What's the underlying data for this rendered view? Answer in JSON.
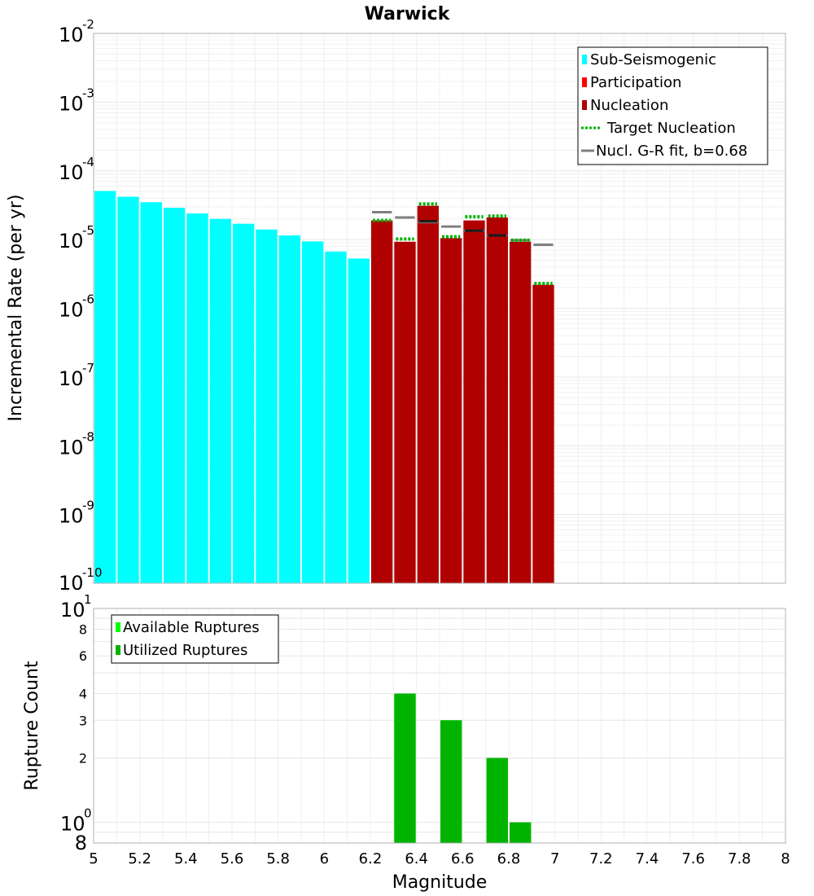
{
  "chart_data": [
    {
      "type": "bar",
      "title": "Warwick",
      "xlabel": "Magnitude",
      "ylabel": "Incremental Rate (per yr)",
      "yscale": "log",
      "xlim": [
        5,
        8
      ],
      "ylim": [
        1e-10,
        0.01
      ],
      "grid": true,
      "legend_position": "top-right",
      "y_tick_labels": [
        {
          "base": "10",
          "exp": "-10",
          "value": 1e-10
        },
        {
          "base": "10",
          "exp": "-9",
          "value": 1e-09
        },
        {
          "base": "10",
          "exp": "-8",
          "value": 1e-08
        },
        {
          "base": "10",
          "exp": "-7",
          "value": 1e-07
        },
        {
          "base": "10",
          "exp": "-6",
          "value": 1e-06
        },
        {
          "base": "10",
          "exp": "-5",
          "value": 1e-05
        },
        {
          "base": "10",
          "exp": "-4",
          "value": 0.0001
        },
        {
          "base": "10",
          "exp": "-3",
          "value": 0.001
        },
        {
          "base": "10",
          "exp": "-2",
          "value": 0.01
        }
      ],
      "legend": [
        {
          "label": "Sub-Seismogenic",
          "color": "#00ffff",
          "kind": "box"
        },
        {
          "label": "Participation",
          "color": "#ff0000",
          "kind": "box"
        },
        {
          "label": "Nucleation",
          "color": "#b00000",
          "kind": "box"
        },
        {
          "label": "Target Nucleation",
          "color": "#00b400",
          "kind": "dotted"
        },
        {
          "label": "Nucl. G-R fit, b=0.68",
          "color": "#808080",
          "kind": "line"
        }
      ],
      "series": [
        {
          "name": "Sub-Seismogenic",
          "color": "#00ffff",
          "x": [
            5.05,
            5.15,
            5.25,
            5.35,
            5.45,
            5.55,
            5.65,
            5.75,
            5.85,
            5.95,
            6.05,
            6.15
          ],
          "values": [
            5.1e-05,
            4.2e-05,
            3.5e-05,
            2.9e-05,
            2.4e-05,
            2e-05,
            1.7e-05,
            1.4e-05,
            1.15e-05,
            9.4e-06,
            6.7e-06,
            5.3e-06
          ]
        },
        {
          "name": "Nucleation",
          "color": "#b00000",
          "x": [
            6.25,
            6.35,
            6.45,
            6.55,
            6.65,
            6.75,
            6.85,
            6.95
          ],
          "values": [
            1.9e-05,
            9.3e-06,
            3.1e-05,
            1.05e-05,
            1.9e-05,
            2.1e-05,
            9.3e-06,
            2.2e-06
          ]
        },
        {
          "name": "Participation",
          "color": "#ff0000",
          "x": [
            6.25,
            6.35,
            6.45,
            6.55,
            6.65,
            6.75,
            6.85,
            6.95
          ],
          "values": [
            1.9e-05,
            9.3e-06,
            3.1e-05,
            1.05e-05,
            1.9e-05,
            2.1e-05,
            9.3e-06,
            2.2e-06
          ]
        },
        {
          "name": "Target Nucleation",
          "color": "#00b400",
          "x": [
            6.25,
            6.35,
            6.45,
            6.55,
            6.65,
            6.75,
            6.85,
            6.95
          ],
          "values": [
            1.9e-05,
            1.02e-05,
            3.3e-05,
            1.1e-05,
            2.15e-05,
            2.2e-05,
            9.8e-06,
            2.3e-06
          ]
        },
        {
          "name": "Nucl. G-R fit, b=0.68",
          "color": "#808080",
          "x": [
            6.25,
            6.35,
            6.45,
            6.55,
            6.65,
            6.75,
            6.85,
            6.95
          ],
          "values": [
            2.5e-05,
            2.1e-05,
            1.8e-05,
            1.55e-05,
            1.35e-05,
            1.15e-05,
            9.8e-06,
            8.4e-06
          ]
        },
        {
          "name": "Nucleation (black marks)",
          "color": "#1a1a1a",
          "x": [
            6.45,
            6.65,
            6.75
          ],
          "values": [
            1.85e-05,
            1.35e-05,
            1.15e-05
          ]
        }
      ]
    },
    {
      "type": "bar",
      "xlabel": "Magnitude",
      "ylabel": "Rupture Count",
      "yscale": "log",
      "xlim": [
        5,
        8
      ],
      "ylim": [
        0.8,
        10
      ],
      "grid": true,
      "legend_position": "top-left",
      "x_ticks": [
        "5",
        "5.2",
        "5.4",
        "5.6",
        "5.8",
        "6",
        "6.2",
        "6.4",
        "6.6",
        "6.8",
        "7",
        "7.2",
        "7.4",
        "7.6",
        "7.8",
        "8"
      ],
      "y_minor_ticks": [
        {
          "label": "8",
          "value": 0.8
        },
        {
          "label": "2",
          "value": 2
        },
        {
          "label": "3",
          "value": 3
        },
        {
          "label": "4",
          "value": 4
        },
        {
          "label": "6",
          "value": 6
        },
        {
          "label": "8",
          "value": 8
        }
      ],
      "y_major_ticks": [
        {
          "base": "10",
          "exp": "0",
          "value": 1
        },
        {
          "base": "10",
          "exp": "1",
          "value": 10
        }
      ],
      "legend": [
        {
          "label": "Available Ruptures",
          "color": "#00ff00",
          "kind": "box"
        },
        {
          "label": "Utilized Ruptures",
          "color": "#00b400",
          "kind": "box"
        }
      ],
      "series": [
        {
          "name": "Available Ruptures",
          "color": "#00ff00",
          "x": [
            6.35,
            6.55,
            6.75,
            6.85
          ],
          "values": [
            4,
            3,
            2,
            1
          ]
        },
        {
          "name": "Utilized Ruptures",
          "color": "#00b400",
          "x": [
            6.35,
            6.55,
            6.75,
            6.85
          ],
          "values": [
            4,
            3,
            2,
            1
          ]
        }
      ]
    }
  ]
}
